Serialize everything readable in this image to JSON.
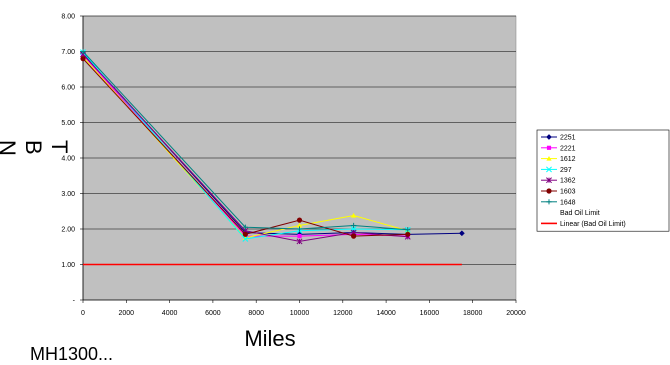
{
  "chart_data": {
    "type": "line",
    "title": "",
    "xlabel": "Miles",
    "ylabel": "T B N",
    "xlim": [
      0,
      20000
    ],
    "ylim": [
      0,
      8
    ],
    "x_ticks": [
      0,
      2000,
      4000,
      6000,
      8000,
      10000,
      12000,
      14000,
      16000,
      18000,
      20000
    ],
    "y_ticks": [
      0,
      1,
      2,
      3,
      4,
      5,
      6,
      7,
      8
    ],
    "y_tick_labels": [
      "-",
      "1.00",
      "2.00",
      "3.00",
      "4.00",
      "5.00",
      "6.00",
      "7.00",
      "8.00"
    ],
    "grid": "horizontal",
    "plot_background": "#c0c0c0",
    "legend_position": "right",
    "series": [
      {
        "name": "2251",
        "color": "#000080",
        "marker": "diamond",
        "x": [
          0,
          7500,
          10000,
          12500,
          15000,
          17500
        ],
        "y": [
          6.95,
          1.9,
          1.85,
          1.9,
          1.85,
          1.88
        ]
      },
      {
        "name": "2221",
        "color": "#ff00ff",
        "marker": "square",
        "x": [
          0,
          7500,
          10000,
          12500,
          15000
        ],
        "y": [
          6.9,
          1.8,
          1.8,
          1.85,
          1.8
        ]
      },
      {
        "name": "1612",
        "color": "#ffff00",
        "marker": "triangle",
        "x": [
          0,
          7500,
          10000,
          12500,
          15000
        ],
        "y": [
          6.85,
          1.75,
          2.1,
          2.38,
          1.95
        ]
      },
      {
        "name": "297",
        "color": "#00ffff",
        "marker": "x",
        "x": [
          0,
          7500,
          10000,
          12500,
          15000
        ],
        "y": [
          6.98,
          1.72,
          1.95,
          2.0,
          1.98
        ]
      },
      {
        "name": "1362",
        "color": "#800080",
        "marker": "asterisk",
        "x": [
          0,
          7500,
          10000,
          12500,
          15000
        ],
        "y": [
          6.92,
          1.95,
          1.65,
          1.9,
          1.78
        ]
      },
      {
        "name": "1603",
        "color": "#800000",
        "marker": "circle",
        "x": [
          0,
          7500,
          10000,
          12500,
          15000
        ],
        "y": [
          6.8,
          1.85,
          2.25,
          1.8,
          1.85
        ]
      },
      {
        "name": "1648",
        "color": "#008080",
        "marker": "plus",
        "x": [
          0,
          7500,
          10000,
          12500,
          15000
        ],
        "y": [
          7.0,
          2.05,
          2.0,
          2.1,
          1.98
        ]
      },
      {
        "name": "Bad Oil Limit",
        "color": "#0000ff",
        "marker": "none",
        "x": [],
        "y": []
      },
      {
        "name": "Linear (Bad Oil Limit)",
        "color": "#ff0000",
        "marker": "none",
        "x": [
          0,
          17500
        ],
        "y": [
          1.0,
          1.0
        ]
      }
    ]
  },
  "page": {
    "cut_text": "MH1300..."
  }
}
